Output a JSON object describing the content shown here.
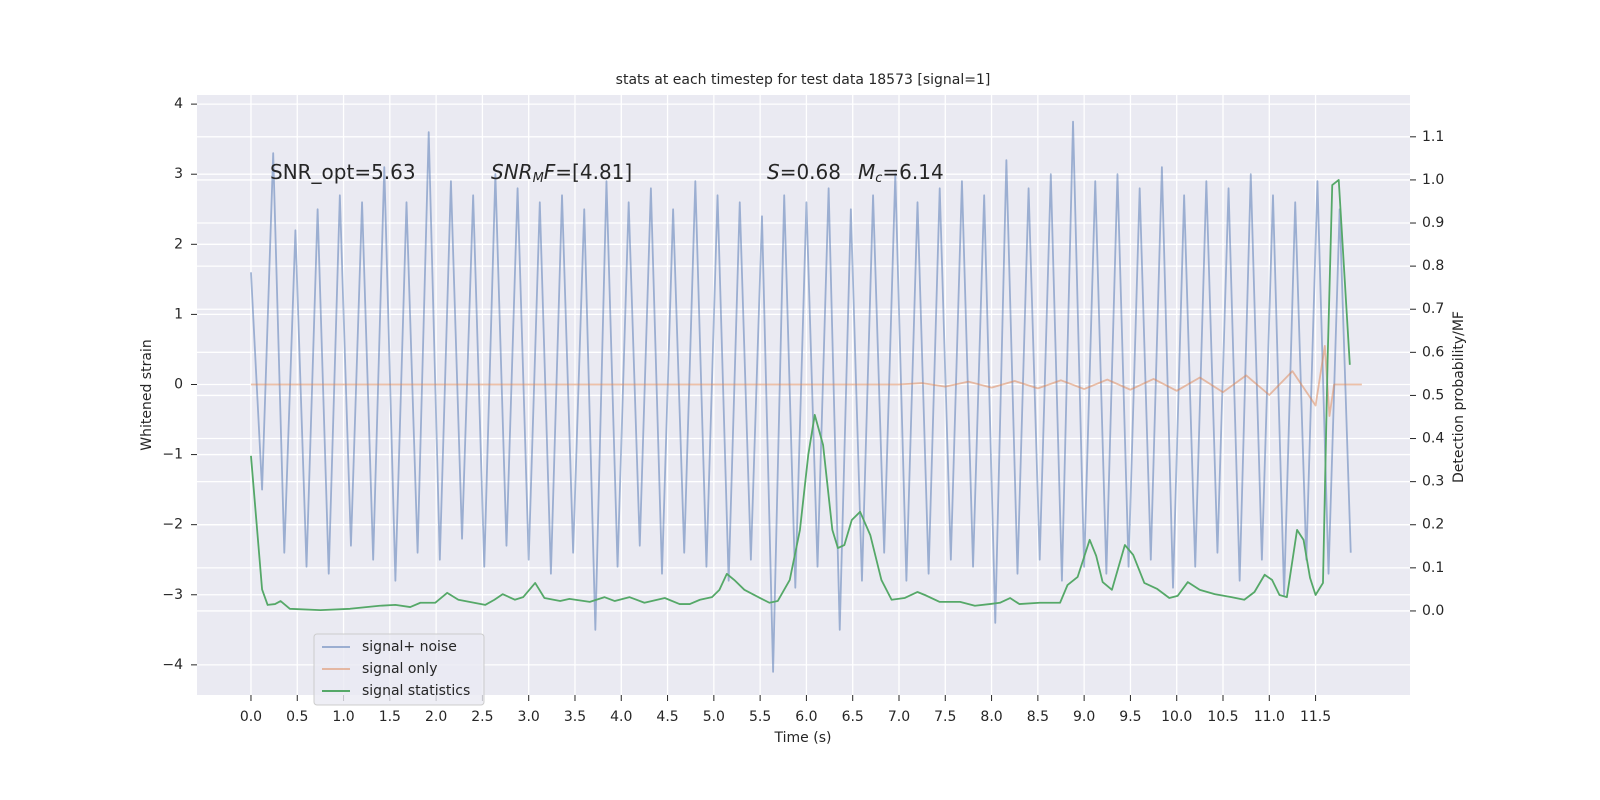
{
  "chart_data": {
    "type": "line",
    "title": "stats at each timestep for test data 18573 [signal=1]",
    "x_label": "Time (s)",
    "y_label": "Whitened strain",
    "y2_label": "Detection probability/MF",
    "xlim": [
      -0.583,
      12.52
    ],
    "ylim": [
      -4.43,
      4.13
    ],
    "y2lim": [
      -0.195,
      1.197
    ],
    "xticks": [
      {
        "value": 0,
        "label": "0.0"
      },
      {
        "value": 0.5,
        "label": "0.5"
      },
      {
        "value": 1,
        "label": "1.0"
      },
      {
        "value": 1.5,
        "label": "1.5"
      },
      {
        "value": 2,
        "label": "2.0"
      },
      {
        "value": 2.5,
        "label": "2.5"
      },
      {
        "value": 3,
        "label": "3.0"
      },
      {
        "value": 3.5,
        "label": "3.5"
      },
      {
        "value": 4,
        "label": "4.0"
      },
      {
        "value": 4.5,
        "label": "4.5"
      },
      {
        "value": 5,
        "label": "5.0"
      },
      {
        "value": 5.5,
        "label": "5.5"
      },
      {
        "value": 6,
        "label": "6.0"
      },
      {
        "value": 6.5,
        "label": "6.5"
      },
      {
        "value": 7,
        "label": "7.0"
      },
      {
        "value": 7.5,
        "label": "7.5"
      },
      {
        "value": 8,
        "label": "8.0"
      },
      {
        "value": 8.5,
        "label": "8.5"
      },
      {
        "value": 9,
        "label": "9.0"
      },
      {
        "value": 9.5,
        "label": "9.5"
      },
      {
        "value": 10,
        "label": "10.0"
      },
      {
        "value": 10.5,
        "label": "10.5"
      },
      {
        "value": 11,
        "label": "11.0"
      },
      {
        "value": 11.5,
        "label": "11.5"
      }
    ],
    "yticks": [
      {
        "value": -4,
        "label": "−4"
      },
      {
        "value": -3,
        "label": "−3"
      },
      {
        "value": -2,
        "label": "−2"
      },
      {
        "value": -1,
        "label": "−1"
      },
      0,
      1,
      2,
      3,
      4
    ],
    "y2ticks": [
      {
        "value": 0,
        "label": "0.0"
      },
      {
        "value": 0.1,
        "label": "0.1"
      },
      {
        "value": 0.2,
        "label": "0.2"
      },
      {
        "value": 0.3,
        "label": "0.3"
      },
      {
        "value": 0.4,
        "label": "0.4"
      },
      {
        "value": 0.5,
        "label": "0.5"
      },
      {
        "value": 0.6,
        "label": "0.6"
      },
      {
        "value": 0.7,
        "label": "0.7"
      },
      {
        "value": 0.8,
        "label": "0.8"
      },
      {
        "value": 0.9,
        "label": "0.9"
      },
      {
        "value": 1,
        "label": "1.0"
      },
      {
        "value": 1.1,
        "label": "1.1"
      }
    ],
    "grid": true,
    "legend": "lower left",
    "annotations": [
      [
        {
          "text": "SNR_opt=5.63",
          "style": "normal"
        }
      ],
      [
        {
          "text": "SNR",
          "style": "italic"
        },
        {
          "text": "M",
          "style": "sub"
        },
        {
          "text": "F",
          "style": "italic"
        },
        {
          "text": "=[4.81]",
          "style": "normal"
        }
      ],
      [
        {
          "text": "S",
          "style": "italic"
        },
        {
          "text": "=0.68",
          "style": "normal"
        }
      ],
      [
        {
          "text": "M",
          "style": "italic"
        },
        {
          "text": "c",
          "style": "sub"
        },
        {
          "text": "=6.14",
          "style": "normal"
        }
      ]
    ],
    "series": [
      {
        "name": "signal+ noise",
        "color": "#4c72b0",
        "alpha": 0.5,
        "axis": "y",
        "x": [
          0,
          0.12,
          0.24,
          0.36,
          0.48,
          0.6,
          0.72,
          0.84,
          0.96,
          1.08,
          1.2,
          1.32,
          1.44,
          1.56,
          1.68,
          1.8,
          1.92,
          2.04,
          2.16,
          2.28,
          2.4,
          2.52,
          2.64,
          2.76,
          2.88,
          3,
          3.12,
          3.24,
          3.36,
          3.48,
          3.6,
          3.72,
          3.84,
          3.96,
          4.08,
          4.2,
          4.32,
          4.44,
          4.56,
          4.68,
          4.8,
          4.92,
          5.04,
          5.16,
          5.28,
          5.4,
          5.52,
          5.64,
          5.76,
          5.88,
          6,
          6.12,
          6.24,
          6.36,
          6.48,
          6.6,
          6.72,
          6.84,
          6.96,
          7.08,
          7.2,
          7.32,
          7.44,
          7.56,
          7.68,
          7.8,
          7.92,
          8.04,
          8.16,
          8.28,
          8.4,
          8.52,
          8.64,
          8.76,
          8.88,
          9,
          9.12,
          9.24,
          9.36,
          9.48,
          9.6,
          9.72,
          9.84,
          9.96,
          10.08,
          10.2,
          10.32,
          10.44,
          10.56,
          10.68,
          10.8,
          10.92,
          11.04,
          11.16,
          11.28,
          11.4,
          11.52,
          11.64,
          11.76,
          11.88
        ],
        "values": [
          1.6,
          -1.5,
          3.3,
          -2.4,
          2.2,
          -2.6,
          2.5,
          -2.7,
          2.7,
          -2.3,
          2.6,
          -2.5,
          3.1,
          -2.8,
          2.6,
          -2.4,
          3.6,
          -2.5,
          2.9,
          -2.2,
          2.7,
          -2.6,
          3.0,
          -2.3,
          2.8,
          -2.5,
          2.6,
          -2.7,
          2.7,
          -2.4,
          2.5,
          -3.5,
          2.9,
          -2.6,
          2.6,
          -2.3,
          2.8,
          -2.7,
          2.5,
          -2.4,
          2.9,
          -2.6,
          2.7,
          -2.8,
          2.6,
          -2.5,
          2.4,
          -4.1,
          2.7,
          -2.9,
          2.6,
          -2.6,
          2.8,
          -3.5,
          2.5,
          -2.8,
          2.7,
          -2.4,
          3.0,
          -2.8,
          2.6,
          -2.7,
          2.8,
          -2.5,
          2.9,
          -2.6,
          2.7,
          -3.4,
          3.2,
          -2.7,
          2.8,
          -2.5,
          3.0,
          -2.8,
          3.75,
          -2.6,
          2.9,
          -2.7,
          3.0,
          -2.6,
          2.8,
          -2.5,
          3.1,
          -2.9,
          2.7,
          -2.6,
          2.9,
          -2.4,
          2.8,
          -2.8,
          3.0,
          -2.5,
          2.7,
          -3.0,
          2.6,
          -2.5,
          2.9,
          -2.7,
          2.5,
          -2.4
        ]
      },
      {
        "name": "signal only",
        "color": "#dd8452",
        "alpha": 0.5,
        "axis": "y",
        "x": [
          0,
          7,
          7.25,
          7.5,
          7.75,
          8,
          8.25,
          8.5,
          8.75,
          9,
          9.25,
          9.5,
          9.75,
          10,
          10.25,
          10.5,
          10.75,
          11,
          11.25,
          11.5,
          11.6,
          11.65,
          11.7,
          12
        ],
        "values": [
          0,
          0,
          0.02,
          -0.03,
          0.04,
          -0.045,
          0.05,
          -0.055,
          0.06,
          -0.065,
          0.07,
          -0.075,
          0.08,
          -0.09,
          0.1,
          -0.11,
          0.13,
          -0.15,
          0.19,
          -0.3,
          0.55,
          -0.45,
          0,
          0
        ]
      },
      {
        "name": "signal statistics",
        "color": "#55a868",
        "alpha": 1,
        "axis": "y2",
        "x": [
          0,
          0.12,
          0.18,
          0.26,
          0.32,
          0.42,
          0.75,
          1.07,
          1.39,
          1.56,
          1.72,
          1.83,
          1.99,
          2.12,
          2.24,
          2.36,
          2.53,
          2.63,
          2.72,
          2.85,
          2.94,
          3.07,
          3.17,
          3.34,
          3.44,
          3.66,
          3.82,
          3.93,
          4.09,
          4.25,
          4.47,
          4.63,
          4.74,
          4.85,
          4.98,
          5.06,
          5.14,
          5.22,
          5.33,
          5.5,
          5.6,
          5.69,
          5.82,
          5.93,
          6.02,
          6.09,
          6.18,
          6.28,
          6.34,
          6.41,
          6.49,
          6.58,
          6.69,
          6.81,
          6.92,
          7.06,
          7.2,
          7.28,
          7.44,
          7.66,
          7.82,
          7.98,
          8.09,
          8.2,
          8.3,
          8.52,
          8.74,
          8.82,
          8.93,
          9.06,
          9.13,
          9.2,
          9.3,
          9.44,
          9.53,
          9.65,
          9.79,
          9.92,
          10.01,
          10.12,
          10.25,
          10.41,
          10.59,
          10.73,
          10.84,
          10.95,
          11.03,
          11.11,
          11.19,
          11.3,
          11.37,
          11.44,
          11.5,
          11.58,
          11.63,
          11.68,
          11.75,
          11.87
        ],
        "values": [
          0.36,
          0.05,
          0.014,
          0.016,
          0.023,
          0.005,
          0.002,
          0.005,
          0.012,
          0.014,
          0.009,
          0.019,
          0.019,
          0.042,
          0.026,
          0.021,
          0.014,
          0.026,
          0.039,
          0.026,
          0.032,
          0.065,
          0.03,
          0.023,
          0.028,
          0.021,
          0.032,
          0.023,
          0.032,
          0.019,
          0.03,
          0.016,
          0.016,
          0.026,
          0.032,
          0.049,
          0.086,
          0.072,
          0.049,
          0.03,
          0.019,
          0.023,
          0.072,
          0.188,
          0.362,
          0.455,
          0.385,
          0.188,
          0.146,
          0.153,
          0.211,
          0.23,
          0.176,
          0.072,
          0.026,
          0.03,
          0.044,
          0.037,
          0.021,
          0.021,
          0.012,
          0.016,
          0.019,
          0.03,
          0.016,
          0.019,
          0.019,
          0.06,
          0.079,
          0.165,
          0.128,
          0.067,
          0.049,
          0.153,
          0.13,
          0.065,
          0.051,
          0.03,
          0.035,
          0.067,
          0.049,
          0.039,
          0.032,
          0.026,
          0.044,
          0.084,
          0.072,
          0.037,
          0.032,
          0.188,
          0.165,
          0.077,
          0.037,
          0.065,
          0.582,
          0.988,
          1.0,
          0.571
        ]
      }
    ]
  }
}
